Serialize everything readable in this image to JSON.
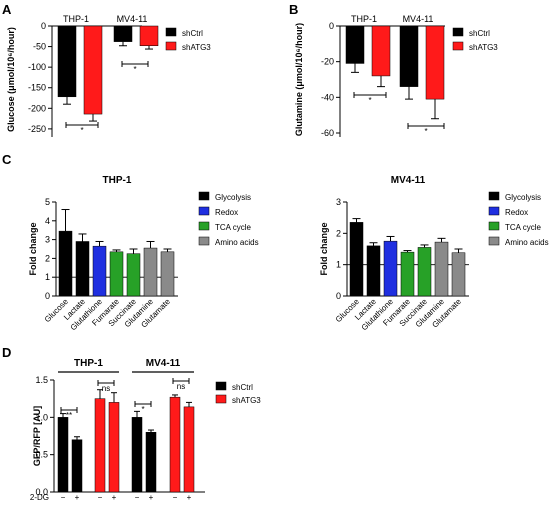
{
  "colors": {
    "black": "#000000",
    "red": "#ff1a1a",
    "blue": "#1f2fe0",
    "green": "#27a127",
    "gray": "#8a8a8a"
  },
  "panels": {
    "A": "A",
    "B": "B",
    "C": "C",
    "D": "D"
  },
  "chart_data": [
    {
      "panel": "A",
      "type": "bar",
      "ylabel": "Glucose (μmol/10⁶/hour)",
      "ylim": [
        -260,
        0
      ],
      "yticks": [
        0,
        -50,
        -100,
        -150,
        -200,
        -250
      ],
      "group_labels": [
        "THP-1",
        "MV4-11"
      ],
      "legend": [
        "shCtrl",
        "shATG3"
      ],
      "legend_placement": "right",
      "series": [
        {
          "name": "shCtrl",
          "values": [
            -172,
            -38
          ],
          "errors": [
            18,
            10
          ]
        },
        {
          "name": "shATG3",
          "values": [
            -214,
            -48
          ],
          "errors": [
            17,
            8
          ]
        }
      ],
      "significance": [
        "*",
        "*"
      ]
    },
    {
      "panel": "B",
      "type": "bar",
      "ylabel": "Glutamine (μmol/10⁶/hour)",
      "ylim": [
        -60,
        0
      ],
      "yticks": [
        0,
        -20,
        -40,
        -60
      ],
      "group_labels": [
        "THP-1",
        "MV4-11"
      ],
      "legend": [
        "shCtrl",
        "shATG3"
      ],
      "legend_placement": "right",
      "series": [
        {
          "name": "shCtrl",
          "values": [
            -21,
            -34
          ],
          "errors": [
            5,
            7
          ]
        },
        {
          "name": "shATG3",
          "values": [
            -28,
            -41
          ],
          "errors": [
            6,
            11
          ]
        }
      ],
      "significance": [
        "*",
        "*"
      ]
    },
    {
      "panel": "C",
      "type": "bar",
      "title": "THP-1",
      "ylabel": "Fold change",
      "ylim": [
        0,
        5
      ],
      "yticks": [
        0,
        1,
        2,
        3,
        4,
        5
      ],
      "reference_line": 1,
      "categories": [
        "Glucose",
        "Lactate",
        "Glutathione",
        "Fumarate",
        "Succinate",
        "Glutamine",
        "Glutamate"
      ],
      "values": [
        3.45,
        2.9,
        2.65,
        2.35,
        2.25,
        2.55,
        2.35
      ],
      "errors": [
        1.15,
        0.4,
        0.25,
        0.1,
        0.25,
        0.35,
        0.15
      ],
      "bar_classes": [
        "Glycolysis",
        "Glycolysis",
        "Redox",
        "TCA cycle",
        "TCA cycle",
        "Amino acids",
        "Amino acids"
      ],
      "legend": [
        "Glycolysis",
        "Redox",
        "TCA cycle",
        "Amino acids"
      ]
    },
    {
      "panel": "C",
      "type": "bar",
      "title": "MV4-11",
      "ylabel": "Fold change",
      "ylim": [
        0,
        3
      ],
      "yticks": [
        0,
        1,
        2,
        3
      ],
      "reference_line": 1,
      "categories": [
        "Glucose",
        "Lactate",
        "Glutathione",
        "Fumarate",
        "Succinate",
        "Glutamine",
        "Glutamate"
      ],
      "values": [
        2.35,
        1.6,
        1.75,
        1.4,
        1.55,
        1.72,
        1.38
      ],
      "errors": [
        0.12,
        0.1,
        0.15,
        0.05,
        0.08,
        0.12,
        0.12
      ],
      "bar_classes": [
        "Glycolysis",
        "Glycolysis",
        "Redox",
        "TCA cycle",
        "TCA cycle",
        "Amino acids",
        "Amino acids"
      ],
      "legend": [
        "Glycolysis",
        "Redox",
        "TCA cycle",
        "Amino acids"
      ]
    },
    {
      "panel": "D",
      "type": "bar",
      "ylabel": "GFP/RFP [AU]",
      "ylim": [
        0,
        1.5
      ],
      "yticks": [
        0,
        0.5,
        1.0,
        1.5
      ],
      "ytick_labels": [
        "0.0",
        "0.5",
        "1.0",
        "1.5"
      ],
      "group_labels": [
        "THP-1",
        "MV4-11"
      ],
      "xaxis_label": "2-DG",
      "xtick_labels": [
        "−",
        "+",
        "−",
        "+",
        "−",
        "+",
        "−",
        "+"
      ],
      "legend": [
        "shCtrl",
        "shATG3"
      ],
      "legend_placement": "right",
      "bars": [
        {
          "group": "THP-1",
          "series": "shCtrl",
          "dg": "−",
          "value": 1.0,
          "error": 0.05
        },
        {
          "group": "THP-1",
          "series": "shCtrl",
          "dg": "+",
          "value": 0.7,
          "error": 0.04
        },
        {
          "group": "THP-1",
          "series": "shATG3",
          "dg": "−",
          "value": 1.25,
          "error": 0.12
        },
        {
          "group": "THP-1",
          "series": "shATG3",
          "dg": "+",
          "value": 1.2,
          "error": 0.13
        },
        {
          "group": "MV4-11",
          "series": "shCtrl",
          "dg": "−",
          "value": 1.0,
          "error": 0.08
        },
        {
          "group": "MV4-11",
          "series": "shCtrl",
          "dg": "+",
          "value": 0.8,
          "error": 0.03
        },
        {
          "group": "MV4-11",
          "series": "shATG3",
          "dg": "−",
          "value": 1.27,
          "error": 0.03
        },
        {
          "group": "MV4-11",
          "series": "shATG3",
          "dg": "+",
          "value": 1.14,
          "error": 0.06
        }
      ],
      "significance": [
        "**",
        "ns",
        "*",
        "ns"
      ]
    }
  ]
}
